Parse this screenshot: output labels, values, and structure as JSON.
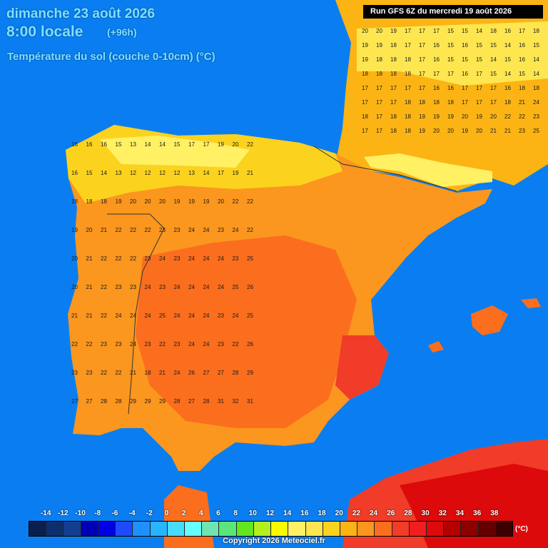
{
  "header": {
    "date": "dimanche 23 août 2026",
    "time": "8:00 locale",
    "offset": "(+96h)",
    "parameter": "Température du sol (couche 0-10cm) (°C)"
  },
  "run_label": "Run GFS 6Z du mercredi 19 août 2026",
  "legend": {
    "labels": [
      "-14",
      "-12",
      "-10",
      "-8",
      "-6",
      "-4",
      "-2",
      "0",
      "2",
      "4",
      "6",
      "8",
      "10",
      "12",
      "14",
      "16",
      "18",
      "20",
      "22",
      "24",
      "26",
      "28",
      "30",
      "32",
      "34",
      "36",
      "38"
    ],
    "colors": [
      "#0a1f4d",
      "#0d2f6e",
      "#133f8e",
      "#0000b4",
      "#0000e6",
      "#1e4bff",
      "#1e90ff",
      "#28b4ff",
      "#46dcff",
      "#64ffff",
      "#6ee6b4",
      "#5ae678",
      "#64e61e",
      "#b4f01e",
      "#fafa00",
      "#fff064",
      "#fde650",
      "#fbd21e",
      "#fbb414",
      "#fb961e",
      "#fa6e1e",
      "#f03c28",
      "#f01e1e",
      "#dc0a0a",
      "#b40000",
      "#8c0000",
      "#640000",
      "#3c0000"
    ],
    "unit": "(°C)"
  },
  "values": [
    {
      "t": "20",
      "c": 0
    },
    {
      "t": "20",
      "c": 1
    },
    {
      "t": "19",
      "c": 2
    },
    {
      "t": "17",
      "c": 3
    },
    {
      "t": "17",
      "c": 4
    },
    {
      "t": "17",
      "c": 5
    },
    {
      "t": "15",
      "c": 6
    },
    {
      "t": "15",
      "c": 7
    },
    {
      "t": "14",
      "c": 8
    },
    {
      "t": "18",
      "c": 9
    },
    {
      "t": "16",
      "c": 10
    },
    {
      "t": "17",
      "c": 11
    },
    {
      "t": "18",
      "c": 12
    },
    {
      "t": "19",
      "c": 13
    },
    {
      "t": "19",
      "c": 14
    },
    {
      "t": "18",
      "c": 15
    },
    {
      "t": "17",
      "c": 16
    },
    {
      "t": "17",
      "c": 17
    },
    {
      "t": "16",
      "c": 18
    },
    {
      "t": "15",
      "c": 19
    },
    {
      "t": "16",
      "c": 20
    },
    {
      "t": "15",
      "c": 21
    },
    {
      "t": "15",
      "c": 22
    },
    {
      "t": "14",
      "c": 23
    },
    {
      "t": "16",
      "c": 24
    },
    {
      "t": "15",
      "c": 25
    },
    {
      "t": "19",
      "c": 26
    },
    {
      "t": "18",
      "c": 27
    },
    {
      "t": "18",
      "c": 28
    },
    {
      "t": "18",
      "c": 29
    },
    {
      "t": "17",
      "c": 30
    },
    {
      "t": "16",
      "c": 31
    },
    {
      "t": "15",
      "c": 32
    },
    {
      "t": "15",
      "c": 33
    },
    {
      "t": "15",
      "c": 34
    },
    {
      "t": "14",
      "c": 35
    },
    {
      "t": "15",
      "c": 36
    },
    {
      "t": "16",
      "c": 37
    },
    {
      "t": "14",
      "c": 38
    },
    {
      "t": "18",
      "c": 39
    },
    {
      "t": "18",
      "c": 40
    },
    {
      "t": "18",
      "c": 41
    },
    {
      "t": "18",
      "c": 42
    },
    {
      "t": "17",
      "c": 43
    },
    {
      "t": "17",
      "c": 44
    },
    {
      "t": "17",
      "c": 45
    },
    {
      "t": "16",
      "c": 46
    },
    {
      "t": "17",
      "c": 47
    },
    {
      "t": "15",
      "c": 48
    },
    {
      "t": "14",
      "c": 49
    },
    {
      "t": "15",
      "c": 50
    },
    {
      "t": "14",
      "c": 51
    },
    {
      "t": "17",
      "c": 52
    },
    {
      "t": "17",
      "c": 53
    },
    {
      "t": "17",
      "c": 54
    },
    {
      "t": "17",
      "c": 55
    },
    {
      "t": "17",
      "c": 56
    },
    {
      "t": "16",
      "c": 57
    },
    {
      "t": "16",
      "c": 58
    },
    {
      "t": "17",
      "c": 59
    },
    {
      "t": "17",
      "c": 60
    },
    {
      "t": "17",
      "c": 61
    },
    {
      "t": "16",
      "c": 62
    },
    {
      "t": "18",
      "c": 63
    },
    {
      "t": "18",
      "c": 64
    },
    {
      "t": "17",
      "c": 65
    },
    {
      "t": "17",
      "c": 66
    },
    {
      "t": "17",
      "c": 67
    },
    {
      "t": "18",
      "c": 68
    },
    {
      "t": "18",
      "c": 69
    },
    {
      "t": "18",
      "c": 70
    },
    {
      "t": "18",
      "c": 71
    },
    {
      "t": "17",
      "c": 72
    },
    {
      "t": "17",
      "c": 73
    },
    {
      "t": "17",
      "c": 74
    },
    {
      "t": "18",
      "c": 75
    },
    {
      "t": "21",
      "c": 76
    },
    {
      "t": "24",
      "c": 77
    },
    {
      "t": "18",
      "c": 78
    },
    {
      "t": "17",
      "c": 79
    },
    {
      "t": "18",
      "c": 80
    },
    {
      "t": "18",
      "c": 81
    },
    {
      "t": "19",
      "c": 82
    },
    {
      "t": "19",
      "c": 83
    },
    {
      "t": "19",
      "c": 84
    },
    {
      "t": "20",
      "c": 85
    },
    {
      "t": "19",
      "c": 86
    },
    {
      "t": "20",
      "c": 87
    },
    {
      "t": "22",
      "c": 88
    },
    {
      "t": "22",
      "c": 89
    },
    {
      "t": "23",
      "c": 90
    },
    {
      "t": "17",
      "c": 91
    },
    {
      "t": "17",
      "c": 92
    },
    {
      "t": "18",
      "c": 93
    },
    {
      "t": "18",
      "c": 94
    },
    {
      "t": "19",
      "c": 95
    },
    {
      "t": "20",
      "c": 96
    },
    {
      "t": "20",
      "c": 97
    },
    {
      "t": "19",
      "c": 98
    },
    {
      "t": "20",
      "c": 99
    },
    {
      "t": "21",
      "c": 100
    },
    {
      "t": "21",
      "c": 101
    },
    {
      "t": "23",
      "c": 102
    },
    {
      "t": "25",
      "c": 103
    },
    {
      "t": "16",
      "c": 104
    },
    {
      "t": "16",
      "c": 105
    },
    {
      "t": "16",
      "c": 106
    },
    {
      "t": "15",
      "c": 107
    },
    {
      "t": "13",
      "c": 108
    },
    {
      "t": "14",
      "c": 109
    },
    {
      "t": "14",
      "c": 110
    },
    {
      "t": "15",
      "c": 111
    },
    {
      "t": "17",
      "c": 112
    },
    {
      "t": "17",
      "c": 113
    },
    {
      "t": "19",
      "c": 114
    },
    {
      "t": "20",
      "c": 115
    },
    {
      "t": "22",
      "c": 116
    },
    {
      "t": "16",
      "c": 117
    },
    {
      "t": "15",
      "c": 118
    },
    {
      "t": "14",
      "c": 119
    },
    {
      "t": "13",
      "c": 120
    },
    {
      "t": "12",
      "c": 121
    },
    {
      "t": "12",
      "c": 122
    },
    {
      "t": "12",
      "c": 123
    },
    {
      "t": "12",
      "c": 124
    },
    {
      "t": "13",
      "c": 125
    },
    {
      "t": "14",
      "c": 126
    },
    {
      "t": "17",
      "c": 127
    },
    {
      "t": "19",
      "c": 128
    },
    {
      "t": "21",
      "c": 129
    },
    {
      "t": "18",
      "c": 130
    },
    {
      "t": "18",
      "c": 131
    },
    {
      "t": "18",
      "c": 132
    },
    {
      "t": "19",
      "c": 133
    },
    {
      "t": "20",
      "c": 134
    },
    {
      "t": "20",
      "c": 135
    },
    {
      "t": "20",
      "c": 136
    },
    {
      "t": "19",
      "c": 137
    },
    {
      "t": "19",
      "c": 138
    },
    {
      "t": "19",
      "c": 139
    },
    {
      "t": "20",
      "c": 140
    },
    {
      "t": "22",
      "c": 141
    },
    {
      "t": "22",
      "c": 142
    },
    {
      "t": "19",
      "c": 143
    },
    {
      "t": "20",
      "c": 144
    },
    {
      "t": "21",
      "c": 145
    },
    {
      "t": "22",
      "c": 146
    },
    {
      "t": "22",
      "c": 147
    },
    {
      "t": "22",
      "c": 148
    },
    {
      "t": "23",
      "c": 149
    },
    {
      "t": "23",
      "c": 150
    },
    {
      "t": "24",
      "c": 151
    },
    {
      "t": "24",
      "c": 152
    },
    {
      "t": "23",
      "c": 153
    },
    {
      "t": "24",
      "c": 154
    },
    {
      "t": "22",
      "c": 155
    },
    {
      "t": "20",
      "c": 156
    },
    {
      "t": "21",
      "c": 157
    },
    {
      "t": "22",
      "c": 158
    },
    {
      "t": "22",
      "c": 159
    },
    {
      "t": "22",
      "c": 160
    },
    {
      "t": "23",
      "c": 161
    },
    {
      "t": "24",
      "c": 162
    },
    {
      "t": "23",
      "c": 163
    },
    {
      "t": "24",
      "c": 164
    },
    {
      "t": "24",
      "c": 165
    },
    {
      "t": "24",
      "c": 166
    },
    {
      "t": "23",
      "c": 167
    },
    {
      "t": "25",
      "c": 168
    },
    {
      "t": "20",
      "c": 169
    },
    {
      "t": "21",
      "c": 170
    },
    {
      "t": "22",
      "c": 171
    },
    {
      "t": "23",
      "c": 172
    },
    {
      "t": "23",
      "c": 173
    },
    {
      "t": "24",
      "c": 174
    },
    {
      "t": "23",
      "c": 175
    },
    {
      "t": "24",
      "c": 176
    },
    {
      "t": "24",
      "c": 177
    },
    {
      "t": "24",
      "c": 178
    },
    {
      "t": "24",
      "c": 179
    },
    {
      "t": "25",
      "c": 180
    },
    {
      "t": "26",
      "c": 181
    },
    {
      "t": "21",
      "c": 182
    },
    {
      "t": "21",
      "c": 183
    },
    {
      "t": "22",
      "c": 184
    },
    {
      "t": "24",
      "c": 185
    },
    {
      "t": "24",
      "c": 186
    },
    {
      "t": "24",
      "c": 187
    },
    {
      "t": "25",
      "c": 188
    },
    {
      "t": "24",
      "c": 189
    },
    {
      "t": "24",
      "c": 190
    },
    {
      "t": "24",
      "c": 191
    },
    {
      "t": "23",
      "c": 192
    },
    {
      "t": "24",
      "c": 193
    },
    {
      "t": "25",
      "c": 194
    },
    {
      "t": "22",
      "c": 195
    },
    {
      "t": "22",
      "c": 196
    },
    {
      "t": "23",
      "c": 197
    },
    {
      "t": "23",
      "c": 198
    },
    {
      "t": "24",
      "c": 199
    },
    {
      "t": "23",
      "c": 200
    },
    {
      "t": "22",
      "c": 201
    },
    {
      "t": "23",
      "c": 202
    },
    {
      "t": "24",
      "c": 203
    },
    {
      "t": "24",
      "c": 204
    },
    {
      "t": "23",
      "c": 205
    },
    {
      "t": "22",
      "c": 206
    },
    {
      "t": "26",
      "c": 207
    },
    {
      "t": "23",
      "c": 208
    },
    {
      "t": "23",
      "c": 209
    },
    {
      "t": "22",
      "c": 210
    },
    {
      "t": "22",
      "c": 211
    },
    {
      "t": "21",
      "c": 212
    },
    {
      "t": "18",
      "c": 213
    },
    {
      "t": "21",
      "c": 214
    },
    {
      "t": "24",
      "c": 215
    },
    {
      "t": "26",
      "c": 216
    },
    {
      "t": "27",
      "c": 217
    },
    {
      "t": "27",
      "c": 218
    },
    {
      "t": "28",
      "c": 219
    },
    {
      "t": "29",
      "c": 220
    },
    {
      "t": "27",
      "c": 221
    },
    {
      "t": "27",
      "c": 222
    },
    {
      "t": "28",
      "c": 223
    },
    {
      "t": "28",
      "c": 224
    },
    {
      "t": "29",
      "c": 225
    },
    {
      "t": "29",
      "c": 226
    },
    {
      "t": "29",
      "c": 227
    },
    {
      "t": "28",
      "c": 228
    },
    {
      "t": "27",
      "c": 229
    },
    {
      "t": "28",
      "c": 230
    },
    {
      "t": "31",
      "c": 231
    },
    {
      "t": "32",
      "c": 232
    },
    {
      "t": "31",
      "c": 233
    }
  ],
  "copyright": "Copyright 2026 Meteociel.fr"
}
